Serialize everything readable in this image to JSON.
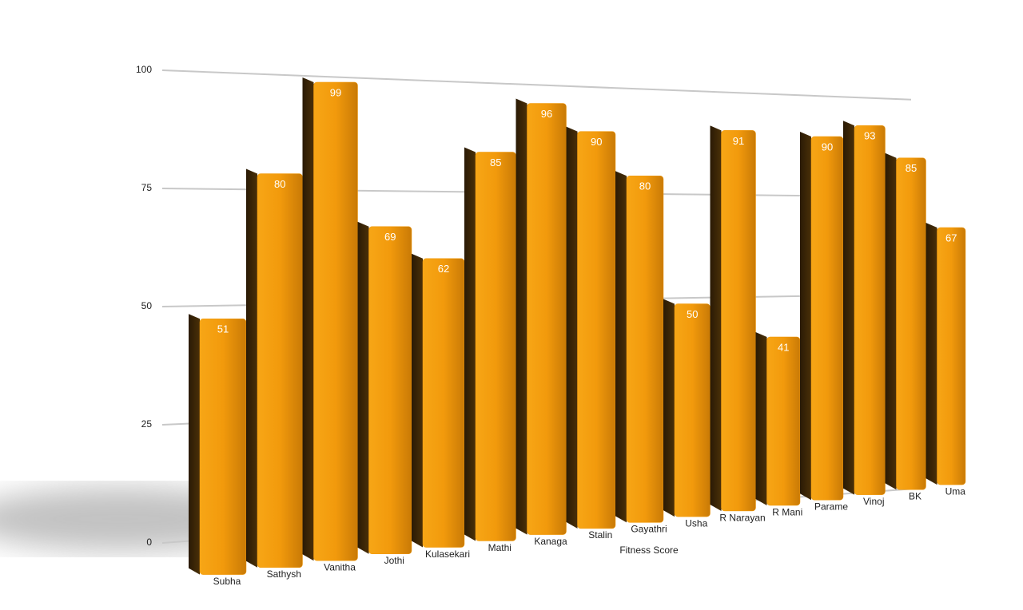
{
  "chart_data": {
    "type": "bar",
    "categories": [
      "Subha",
      "Sathysh",
      "Vanitha",
      "Jothi",
      "Kulasekari",
      "Mathi",
      "Kanaga",
      "Stalin",
      "Gayathri",
      "Usha",
      "R Narayan",
      "R Mani",
      "Parame",
      "Vinoj",
      "BK",
      "Uma"
    ],
    "values": [
      51,
      80,
      99,
      69,
      62,
      85,
      96,
      90,
      80,
      50,
      91,
      41,
      90,
      93,
      85,
      67
    ],
    "color": "#f29a0c",
    "x_label": "Fitness Score",
    "ylim": [
      0,
      100
    ],
    "yticks": [
      0,
      25,
      50,
      75,
      100
    ],
    "grid": true
  }
}
